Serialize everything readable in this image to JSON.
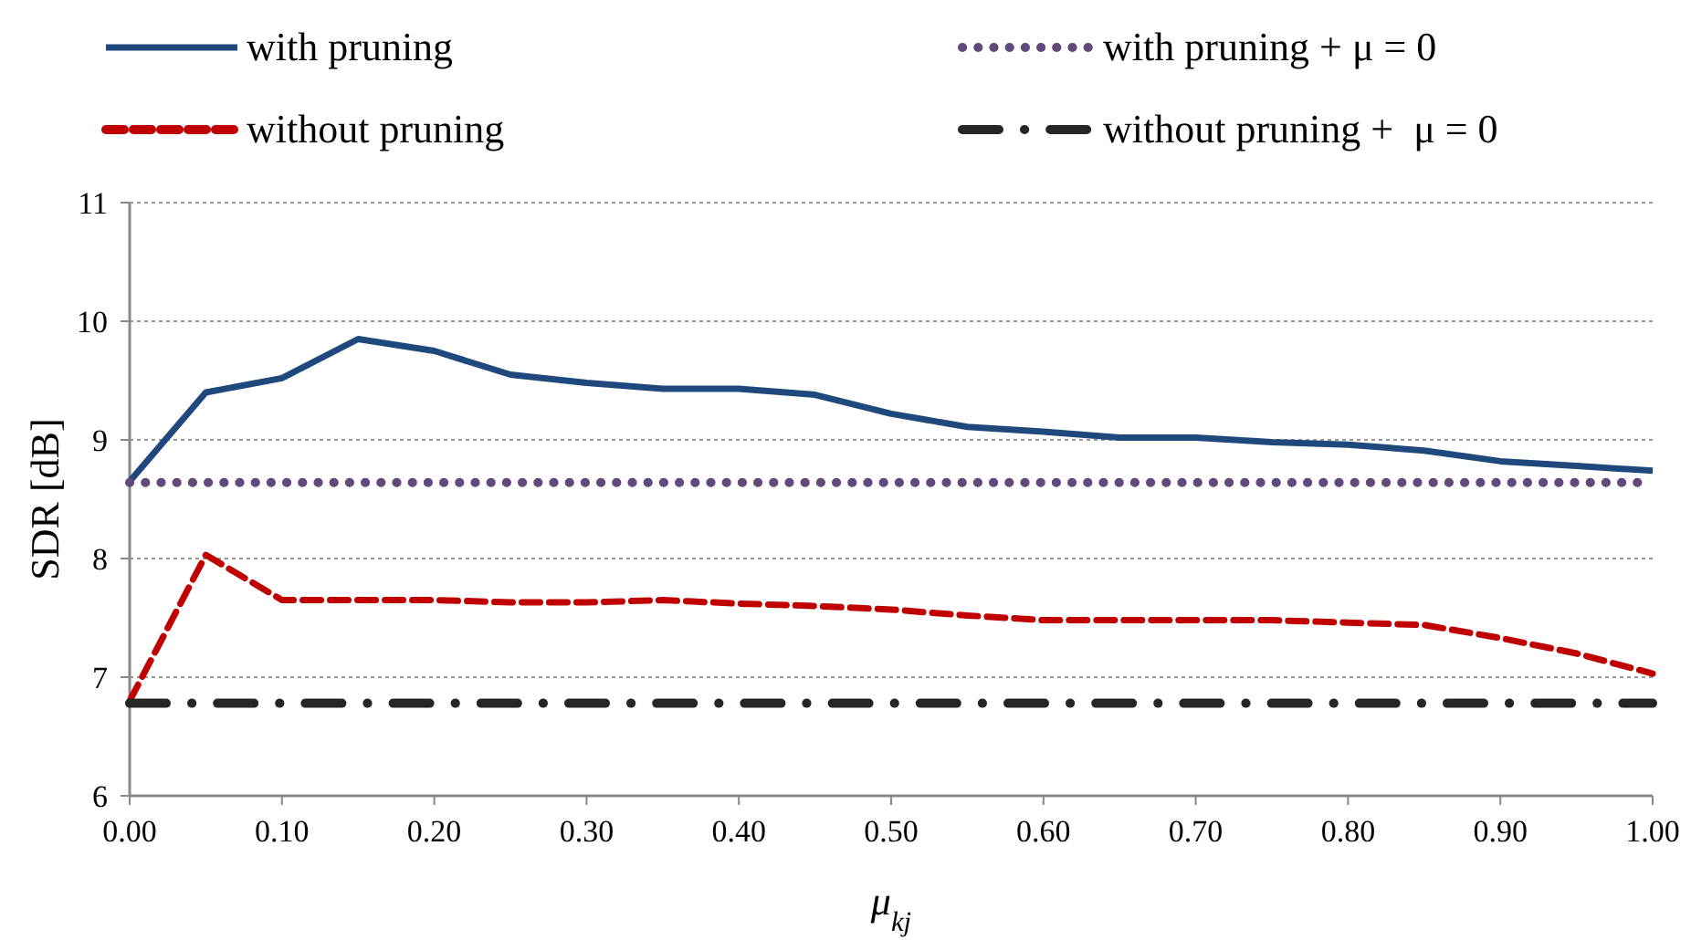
{
  "chart_data": {
    "type": "line",
    "xlabel": "μ$_{kj}$",
    "ylabel": "SDR [dB]",
    "x": [
      0,
      0.05,
      0.1,
      0.15,
      0.2,
      0.25,
      0.3,
      0.35,
      0.4,
      0.45,
      0.5,
      0.55,
      0.6,
      0.65,
      0.7,
      0.75,
      0.8,
      0.85,
      0.9,
      0.95,
      1.0
    ],
    "series": [
      {
        "name": "with pruning",
        "color": "#1f497d",
        "line_style": "solid",
        "values": [
          8.65,
          9.4,
          9.52,
          9.85,
          9.75,
          9.55,
          9.48,
          9.43,
          9.43,
          9.38,
          9.22,
          9.11,
          9.07,
          9.02,
          9.02,
          8.98,
          8.96,
          8.91,
          8.82,
          8.78,
          8.74
        ]
      },
      {
        "name": "with pruning + μ = 0",
        "color": "#604a7b",
        "line_style": "dotted",
        "values": [
          8.64,
          8.64,
          8.64,
          8.64,
          8.64,
          8.64,
          8.64,
          8.64,
          8.64,
          8.64,
          8.64,
          8.64,
          8.64,
          8.64,
          8.64,
          8.64,
          8.64,
          8.64,
          8.64,
          8.64,
          8.64
        ]
      },
      {
        "name": "without pruning",
        "color": "#c00000",
        "line_style": "dashed",
        "values": [
          6.8,
          8.03,
          7.65,
          7.65,
          7.65,
          7.63,
          7.63,
          7.65,
          7.62,
          7.6,
          7.57,
          7.52,
          7.48,
          7.48,
          7.48,
          7.48,
          7.46,
          7.44,
          7.33,
          7.2,
          7.03
        ]
      },
      {
        "name": "without pruning +  μ = 0",
        "color": "#262626",
        "line_style": "dashdot",
        "values": [
          6.78,
          6.78,
          6.78,
          6.78,
          6.78,
          6.78,
          6.78,
          6.78,
          6.78,
          6.78,
          6.78,
          6.78,
          6.78,
          6.78,
          6.78,
          6.78,
          6.78,
          6.78,
          6.78,
          6.78,
          6.78
        ]
      }
    ],
    "xlim": [
      0,
      1
    ],
    "xticks": [
      {
        "value": 0,
        "label": "0.00"
      },
      {
        "value": 0.1,
        "label": "0.10"
      },
      {
        "value": 0.2,
        "label": "0.20"
      },
      {
        "value": 0.3,
        "label": "0.30"
      },
      {
        "value": 0.4,
        "label": "0.40"
      },
      {
        "value": 0.5,
        "label": "0.50"
      },
      {
        "value": 0.6,
        "label": "0.60"
      },
      {
        "value": 0.7,
        "label": "0.70"
      },
      {
        "value": 0.8,
        "label": "0.80"
      },
      {
        "value": 0.9,
        "label": "0.90"
      },
      {
        "value": 1,
        "label": "1.00"
      }
    ],
    "ylim": [
      6,
      11
    ],
    "yticks": [
      6,
      7,
      8,
      9,
      10,
      11
    ],
    "grid": "y",
    "legend": "top",
    "marker": "none"
  }
}
